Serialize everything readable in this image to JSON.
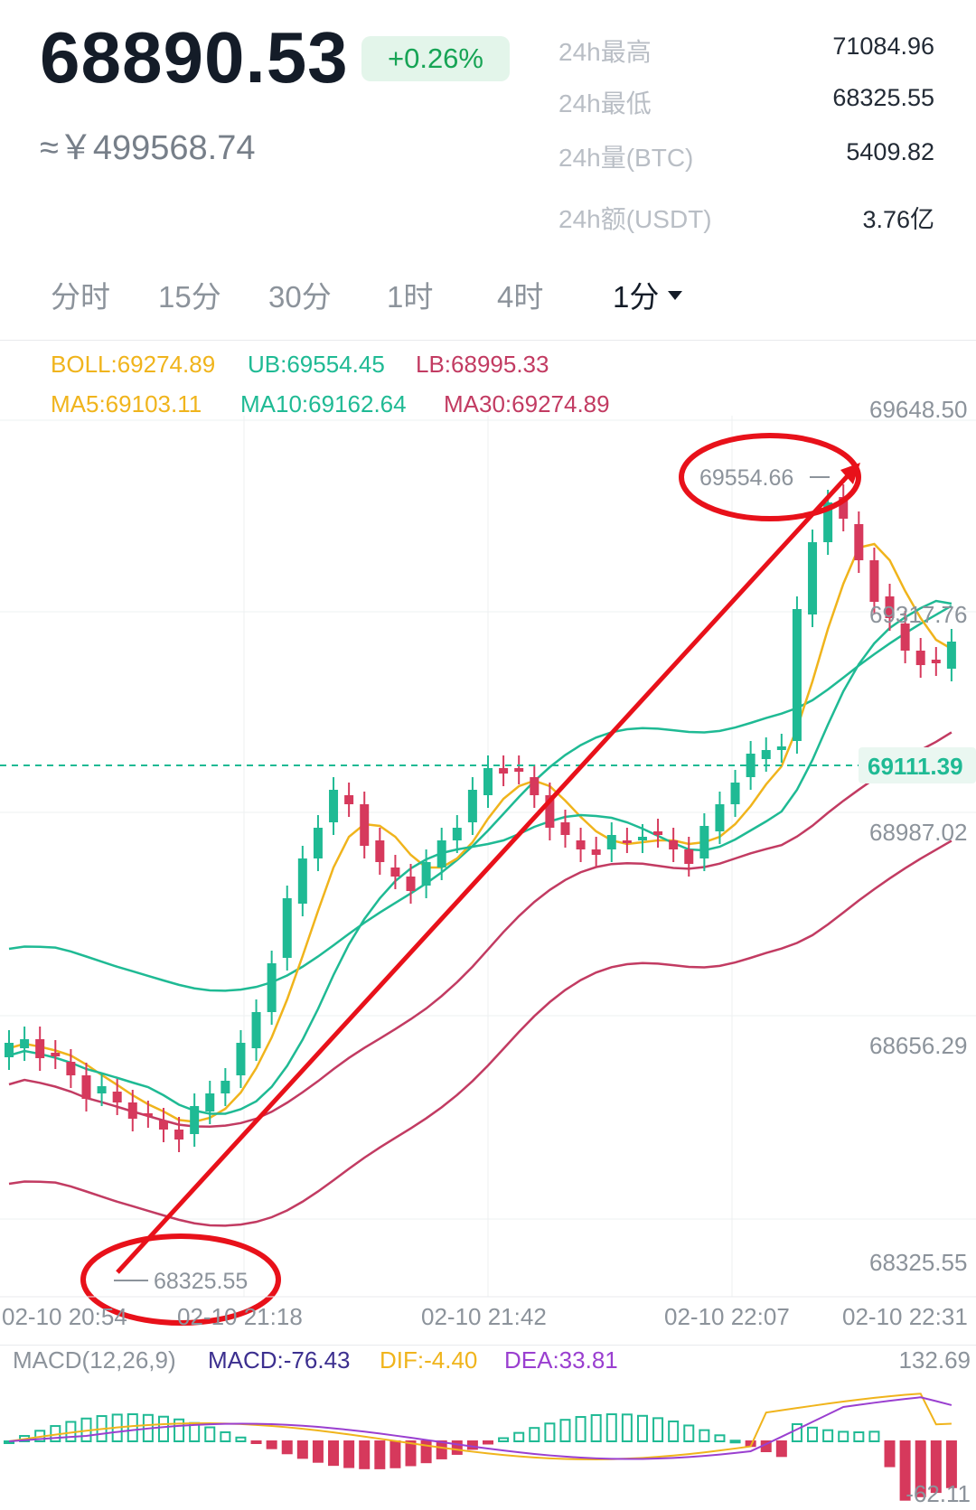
{
  "ticker": {
    "last_price": "68890.53",
    "change_pct": "+0.26%",
    "cny_price": "≈￥499568.74"
  },
  "stats": [
    {
      "label": "24h最高",
      "value": "71084.96"
    },
    {
      "label": "24h最低",
      "value": "68325.55"
    },
    {
      "label": "24h量(BTC)",
      "value": "5409.82"
    },
    {
      "label": "24h额(USDT)",
      "value": "3.76亿"
    }
  ],
  "tabs": [
    {
      "label": "分时",
      "active": false
    },
    {
      "label": "15分",
      "active": false
    },
    {
      "label": "30分",
      "active": false
    },
    {
      "label": "1时",
      "active": false
    },
    {
      "label": "4时",
      "active": false
    },
    {
      "label": "1分",
      "active": true
    }
  ],
  "indicators": {
    "boll": "BOLL:69274.89",
    "ub": "UB:69554.45",
    "lb": "LB:68995.33",
    "ma5": "MA5:69103.11",
    "ma10": "MA10:69162.64",
    "ma30": "MA30:69274.89"
  },
  "chart": {
    "y_ticks": [
      "69648.50",
      "69317.76",
      "68987.02",
      "68656.29",
      "68325.55"
    ],
    "current_price": "69111.39",
    "high_marker": "69554.66",
    "low_marker": "68325.55",
    "x_ticks": [
      "02-10 20:54",
      "02-10 21:18",
      "02-10 21:42",
      "02-10 22:07",
      "02-10 22:31"
    ]
  },
  "macd": {
    "title": "MACD(12,26,9)",
    "macd": "MACD:-76.43",
    "dif": "DIF:-4.40",
    "dea": "DEA:33.81",
    "y_max": "132.69",
    "y_min": "-62.11"
  },
  "colors": {
    "up": "#1fba94",
    "down": "#d6395c",
    "ma5": "#f0b41c",
    "ma10": "#1fba94",
    "ma30": "#c23b62",
    "annotation": "#e8111a",
    "dif": "#f0b41c",
    "dea": "#9a3fd0"
  }
}
